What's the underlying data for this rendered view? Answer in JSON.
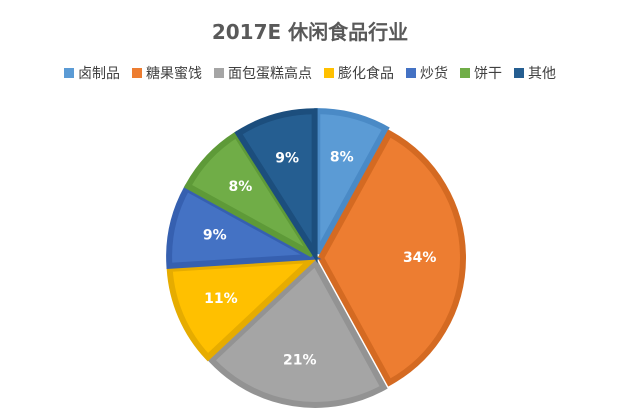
{
  "chart_data": {
    "type": "pie",
    "title": "2017E 休闲食品行业",
    "legend_position": "top",
    "categories": [
      "卤制品",
      "糖果蜜饯",
      "面包蛋糕高点",
      "膨化食品",
      "炒货",
      "饼干",
      "其他"
    ],
    "values": [
      8,
      34,
      21,
      11,
      9,
      8,
      9
    ],
    "labels": [
      "8%",
      "34%",
      "21%",
      "11%",
      "9%",
      "8%",
      "9%"
    ],
    "colors": [
      "#5B9BD5",
      "#ED7D31",
      "#A5A5A5",
      "#FFC000",
      "#4472C4",
      "#70AD47",
      "#255E91"
    ],
    "border_colors": [
      "#4A8AC6",
      "#D46A22",
      "#939393",
      "#E6AC00",
      "#3660B0",
      "#5E9A38",
      "#1C4E7D"
    ]
  }
}
